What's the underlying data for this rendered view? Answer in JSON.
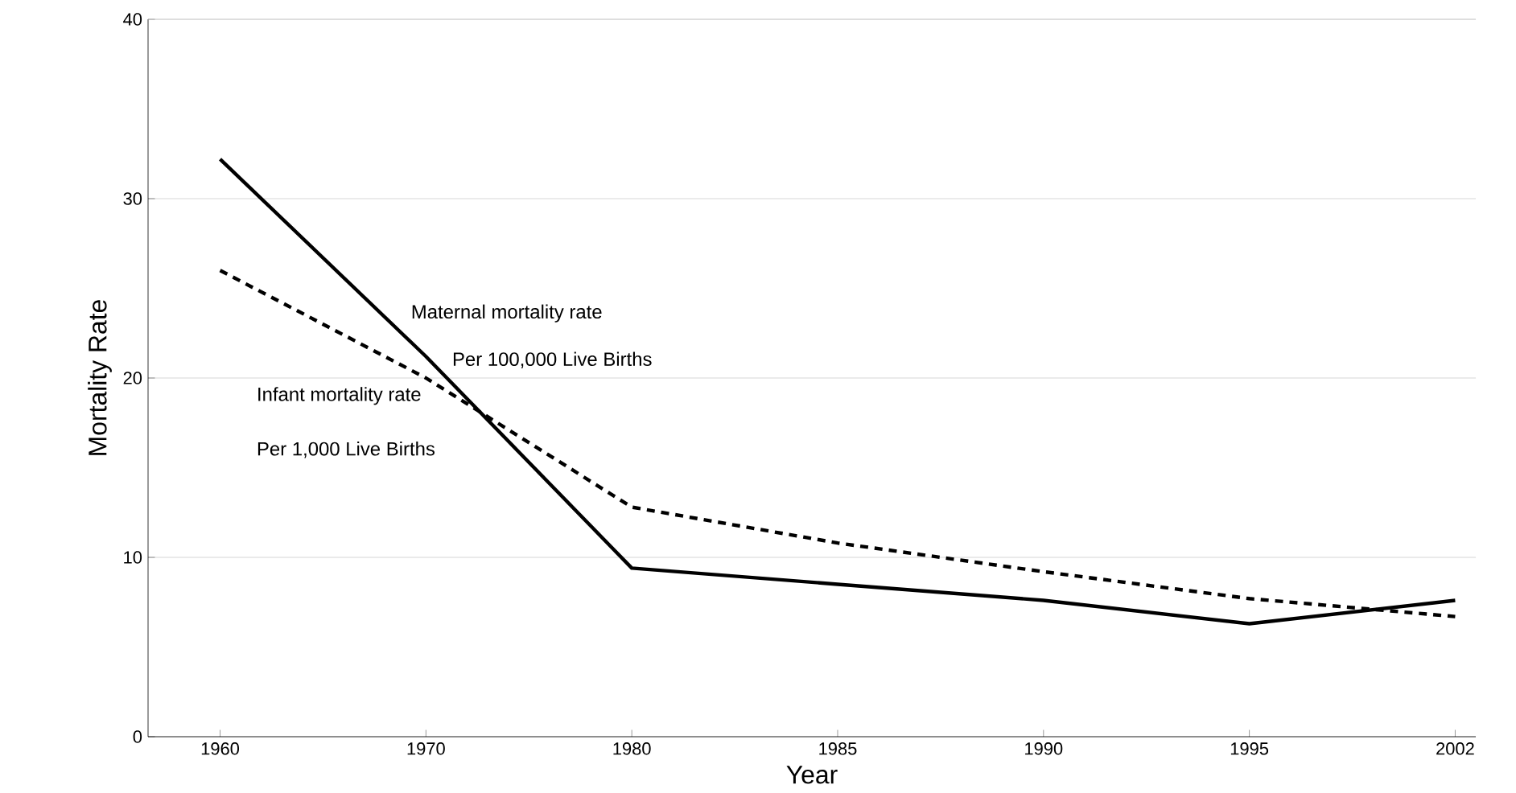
{
  "chart_data": {
    "type": "line",
    "xlabel": "Year",
    "ylabel": "Mortality Rate",
    "categories": [
      "1960",
      "1970",
      "1980",
      "1985",
      "1990",
      "1995",
      "2002"
    ],
    "series": [
      {
        "name": "Maternal mortality rate",
        "color": "#000000",
        "line_style": "solid",
        "values": [
          32.2,
          21.2,
          9.4,
          8.5,
          7.6,
          6.3,
          7.6
        ]
      },
      {
        "name": "Infant mortality rate",
        "color": "#000000",
        "line_style": "dashed",
        "values": [
          26,
          20,
          12.8,
          10.8,
          9.2,
          7.7,
          6.7
        ]
      }
    ],
    "annotations": [
      "Per 100,000 Live Births",
      "Per 1,000 Live Births"
    ],
    "ylim": [
      0,
      40
    ],
    "yticks": [
      0,
      10,
      20,
      30,
      40
    ],
    "grid": "y",
    "legend": false,
    "marker": "none"
  }
}
